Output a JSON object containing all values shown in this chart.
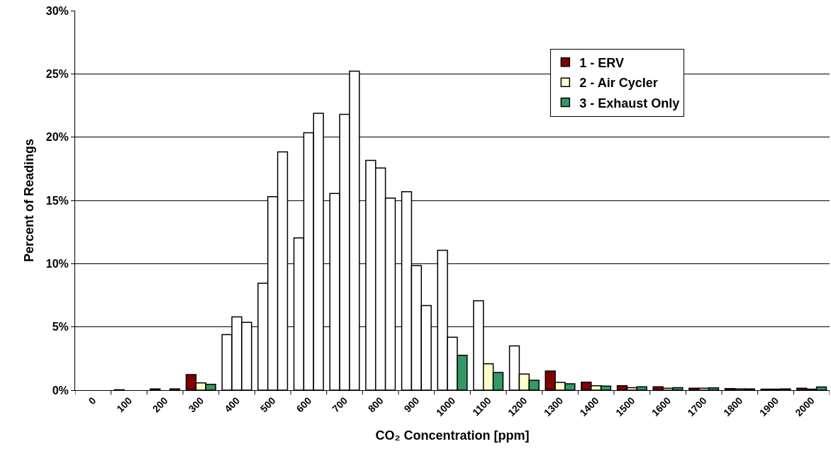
{
  "chart_data": {
    "type": "bar",
    "xlabel": "CO₂ Concentration [ppm]",
    "ylabel": "Percent of Readings",
    "categories": [
      "0",
      "100",
      "200",
      "300",
      "400",
      "500",
      "600",
      "700",
      "800",
      "900",
      "1000",
      "1100",
      "1200",
      "1300",
      "1400",
      "1500",
      "1600",
      "1700",
      "1800",
      "1900",
      "2000"
    ],
    "series": [
      {
        "name": "1 - ERV",
        "color": "#800000",
        "colors": [
          "#800000",
          "#800000",
          "#800000",
          "#800000",
          "#ffffff",
          "#ffffff",
          "#ffffff",
          "#ffffff",
          "#ffffff",
          "#ffffff",
          "#ffffff",
          "#ffffff",
          "#ffffff",
          "#800000",
          "#800000",
          "#800000",
          "#800000",
          "#800000",
          "#800000",
          "#800000",
          "#800000"
        ],
        "values": [
          null,
          0.03,
          0.1,
          1.23,
          4.4,
          8.45,
          12.03,
          15.55,
          18.16,
          15.68,
          11.06,
          7.06,
          3.5,
          1.51,
          0.63,
          0.35,
          0.26,
          0.15,
          0.12,
          0.08,
          0.15
        ]
      },
      {
        "name": "2 - Air Cycler",
        "color": "#ffffcc",
        "colors": [
          "#ffffcc",
          "#ffffcc",
          "#ffffcc",
          "#ffffcc",
          "#ffffff",
          "#ffffff",
          "#ffffff",
          "#ffffff",
          "#ffffff",
          "#ffffff",
          "#ffffff",
          "#ffffcc",
          "#ffffcc",
          "#ffffcc",
          "#ffffcc",
          "#ffffcc",
          "#ffffcc",
          "#ffffcc",
          "#ffffcc",
          "#ffffcc",
          "#ffffcc"
        ],
        "values": [
          null,
          null,
          null,
          0.58,
          5.79,
          15.29,
          20.35,
          21.8,
          17.56,
          9.85,
          4.19,
          2.09,
          1.27,
          0.61,
          0.35,
          0.2,
          0.15,
          0.15,
          0.1,
          0.08,
          0.08
        ]
      },
      {
        "name": "3 - Exhaust Only",
        "color": "#339966",
        "colors": [
          "#339966",
          "#339966",
          "#339966",
          "#339966",
          "#ffffff",
          "#ffffff",
          "#ffffff",
          "#ffffff",
          "#ffffff",
          "#ffffff",
          "#339966",
          "#339966",
          "#339966",
          "#339966",
          "#339966",
          "#339966",
          "#339966",
          "#339966",
          "#339966",
          "#339966",
          "#339966"
        ],
        "values": [
          null,
          null,
          0.1,
          0.46,
          5.36,
          18.83,
          21.88,
          25.21,
          15.18,
          6.69,
          2.76,
          1.4,
          0.78,
          0.5,
          0.32,
          0.26,
          0.2,
          0.18,
          0.1,
          0.1,
          0.25
        ]
      }
    ],
    "ylim": [
      0,
      30
    ],
    "yticks": [
      {
        "value": 0,
        "label": "0%"
      },
      {
        "value": 5,
        "label": "5%"
      },
      {
        "value": 10,
        "label": "10%"
      },
      {
        "value": 15,
        "label": "15%"
      },
      {
        "value": 20,
        "label": "20%"
      },
      {
        "value": 25,
        "label": "25%"
      },
      {
        "value": 30,
        "label": "30%"
      }
    ],
    "grid": "y",
    "legend": "top right"
  }
}
